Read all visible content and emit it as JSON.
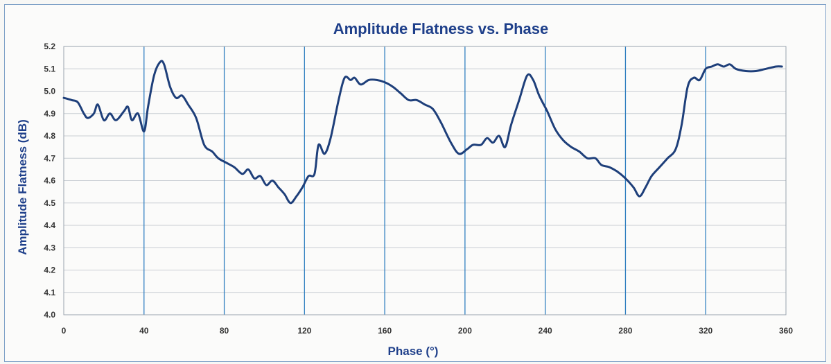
{
  "chart_data": {
    "type": "line",
    "title": "Amplitude Flatness vs. Phase",
    "xlabel": "Phase (°)",
    "ylabel": "Amplitude Flatness (dB)",
    "xlim": [
      0,
      360
    ],
    "ylim": [
      4.0,
      5.2
    ],
    "x_ticks": [
      "0",
      "40",
      "80",
      "120",
      "160",
      "200",
      "240",
      "280",
      "320",
      "360"
    ],
    "y_ticks": [
      "4.0",
      "4.1",
      "4.2",
      "4.3",
      "4.4",
      "4.5",
      "4.6",
      "4.7",
      "4.8",
      "4.9",
      "5.0",
      "5.1",
      "5.2"
    ],
    "grid": "on",
    "legend": "none",
    "colors": {
      "line": "#1e3f7a",
      "grid_vertical": "#2f7fc0",
      "grid_horizontal": "#c8ccd2",
      "title": "#1e3f8a"
    },
    "series": [
      {
        "points": [
          [
            0,
            4.97
          ],
          [
            4,
            4.96
          ],
          [
            7,
            4.95
          ],
          [
            10,
            4.9
          ],
          [
            12,
            4.88
          ],
          [
            15,
            4.9
          ],
          [
            17,
            4.94
          ],
          [
            20,
            4.87
          ],
          [
            23,
            4.9
          ],
          [
            26,
            4.87
          ],
          [
            30,
            4.91
          ],
          [
            32,
            4.93
          ],
          [
            34,
            4.87
          ],
          [
            37,
            4.9
          ],
          [
            40,
            4.82
          ],
          [
            42,
            4.93
          ],
          [
            45,
            5.07
          ],
          [
            48,
            5.13
          ],
          [
            50,
            5.12
          ],
          [
            53,
            5.02
          ],
          [
            56,
            4.97
          ],
          [
            59,
            4.98
          ],
          [
            62,
            4.94
          ],
          [
            66,
            4.88
          ],
          [
            70,
            4.76
          ],
          [
            74,
            4.73
          ],
          [
            77,
            4.7
          ],
          [
            81,
            4.68
          ],
          [
            85,
            4.66
          ],
          [
            89,
            4.63
          ],
          [
            92,
            4.65
          ],
          [
            95,
            4.61
          ],
          [
            98,
            4.62
          ],
          [
            101,
            4.58
          ],
          [
            104,
            4.6
          ],
          [
            107,
            4.57
          ],
          [
            110,
            4.54
          ],
          [
            113,
            4.5
          ],
          [
            116,
            4.53
          ],
          [
            119,
            4.57
          ],
          [
            122,
            4.62
          ],
          [
            125,
            4.63
          ],
          [
            127,
            4.76
          ],
          [
            130,
            4.72
          ],
          [
            133,
            4.79
          ],
          [
            137,
            4.96
          ],
          [
            140,
            5.06
          ],
          [
            143,
            5.05
          ],
          [
            145,
            5.06
          ],
          [
            148,
            5.03
          ],
          [
            152,
            5.05
          ],
          [
            156,
            5.05
          ],
          [
            160,
            5.04
          ],
          [
            164,
            5.02
          ],
          [
            168,
            4.99
          ],
          [
            172,
            4.96
          ],
          [
            176,
            4.96
          ],
          [
            180,
            4.94
          ],
          [
            184,
            4.92
          ],
          [
            188,
            4.86
          ],
          [
            193,
            4.77
          ],
          [
            197,
            4.72
          ],
          [
            201,
            4.74
          ],
          [
            204,
            4.76
          ],
          [
            208,
            4.76
          ],
          [
            211,
            4.79
          ],
          [
            214,
            4.77
          ],
          [
            217,
            4.8
          ],
          [
            220,
            4.75
          ],
          [
            223,
            4.85
          ],
          [
            227,
            4.96
          ],
          [
            231,
            5.07
          ],
          [
            234,
            5.05
          ],
          [
            237,
            4.98
          ],
          [
            241,
            4.91
          ],
          [
            245,
            4.83
          ],
          [
            249,
            4.78
          ],
          [
            253,
            4.75
          ],
          [
            257,
            4.73
          ],
          [
            261,
            4.7
          ],
          [
            265,
            4.7
          ],
          [
            268,
            4.67
          ],
          [
            272,
            4.66
          ],
          [
            276,
            4.64
          ],
          [
            280,
            4.61
          ],
          [
            284,
            4.57
          ],
          [
            287,
            4.53
          ],
          [
            290,
            4.57
          ],
          [
            293,
            4.62
          ],
          [
            297,
            4.66
          ],
          [
            301,
            4.7
          ],
          [
            305,
            4.74
          ],
          [
            308,
            4.85
          ],
          [
            311,
            5.02
          ],
          [
            314,
            5.06
          ],
          [
            317,
            5.05
          ],
          [
            320,
            5.1
          ],
          [
            323,
            5.11
          ],
          [
            326,
            5.12
          ],
          [
            329,
            5.11
          ],
          [
            332,
            5.12
          ],
          [
            335,
            5.1
          ],
          [
            340,
            5.09
          ],
          [
            345,
            5.09
          ],
          [
            350,
            5.1
          ],
          [
            355,
            5.11
          ],
          [
            358,
            5.11
          ]
        ]
      }
    ]
  }
}
